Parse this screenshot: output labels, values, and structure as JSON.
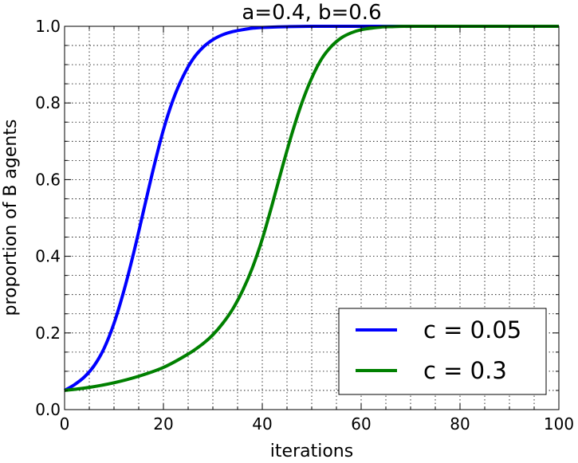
{
  "chart_data": {
    "type": "line",
    "title": "a=0.4, b=0.6",
    "xlabel": "iterations",
    "ylabel": "proportion of B agents",
    "xlim": [
      0,
      100
    ],
    "ylim": [
      0.0,
      1.0
    ],
    "x_ticks": [
      "0",
      "20",
      "40",
      "60",
      "80",
      "100"
    ],
    "y_ticks": [
      "0.0",
      "0.2",
      "0.4",
      "0.6",
      "0.8",
      "1.0"
    ],
    "grid": "dotted, minor",
    "legend_position": "lower right",
    "series": [
      {
        "name": "c = 0.05",
        "color": "#0000ff",
        "x": [
          0,
          2,
          4,
          6,
          8,
          10,
          12,
          14,
          16,
          18,
          20,
          22,
          24,
          26,
          28,
          30,
          32,
          34,
          36,
          38,
          40,
          45,
          50,
          60,
          70,
          80,
          90,
          100
        ],
        "y": [
          0.05,
          0.065,
          0.085,
          0.115,
          0.16,
          0.225,
          0.31,
          0.41,
          0.52,
          0.63,
          0.73,
          0.81,
          0.87,
          0.915,
          0.945,
          0.965,
          0.978,
          0.986,
          0.991,
          0.995,
          0.997,
          0.999,
          1.0,
          1.0,
          1.0,
          1.0,
          1.0,
          1.0
        ]
      },
      {
        "name": "c = 0.3",
        "color": "#008000",
        "x": [
          0,
          5,
          10,
          15,
          20,
          25,
          28,
          30,
          32,
          34,
          36,
          38,
          40,
          42,
          44,
          46,
          48,
          50,
          52,
          54,
          56,
          58,
          60,
          62,
          64,
          66,
          70,
          80,
          90,
          100
        ],
        "y": [
          0.05,
          0.058,
          0.07,
          0.087,
          0.11,
          0.145,
          0.172,
          0.195,
          0.225,
          0.262,
          0.31,
          0.37,
          0.445,
          0.535,
          0.63,
          0.72,
          0.8,
          0.865,
          0.915,
          0.948,
          0.97,
          0.983,
          0.991,
          0.995,
          0.998,
          0.999,
          1.0,
          1.0,
          1.0,
          1.0
        ]
      }
    ]
  }
}
